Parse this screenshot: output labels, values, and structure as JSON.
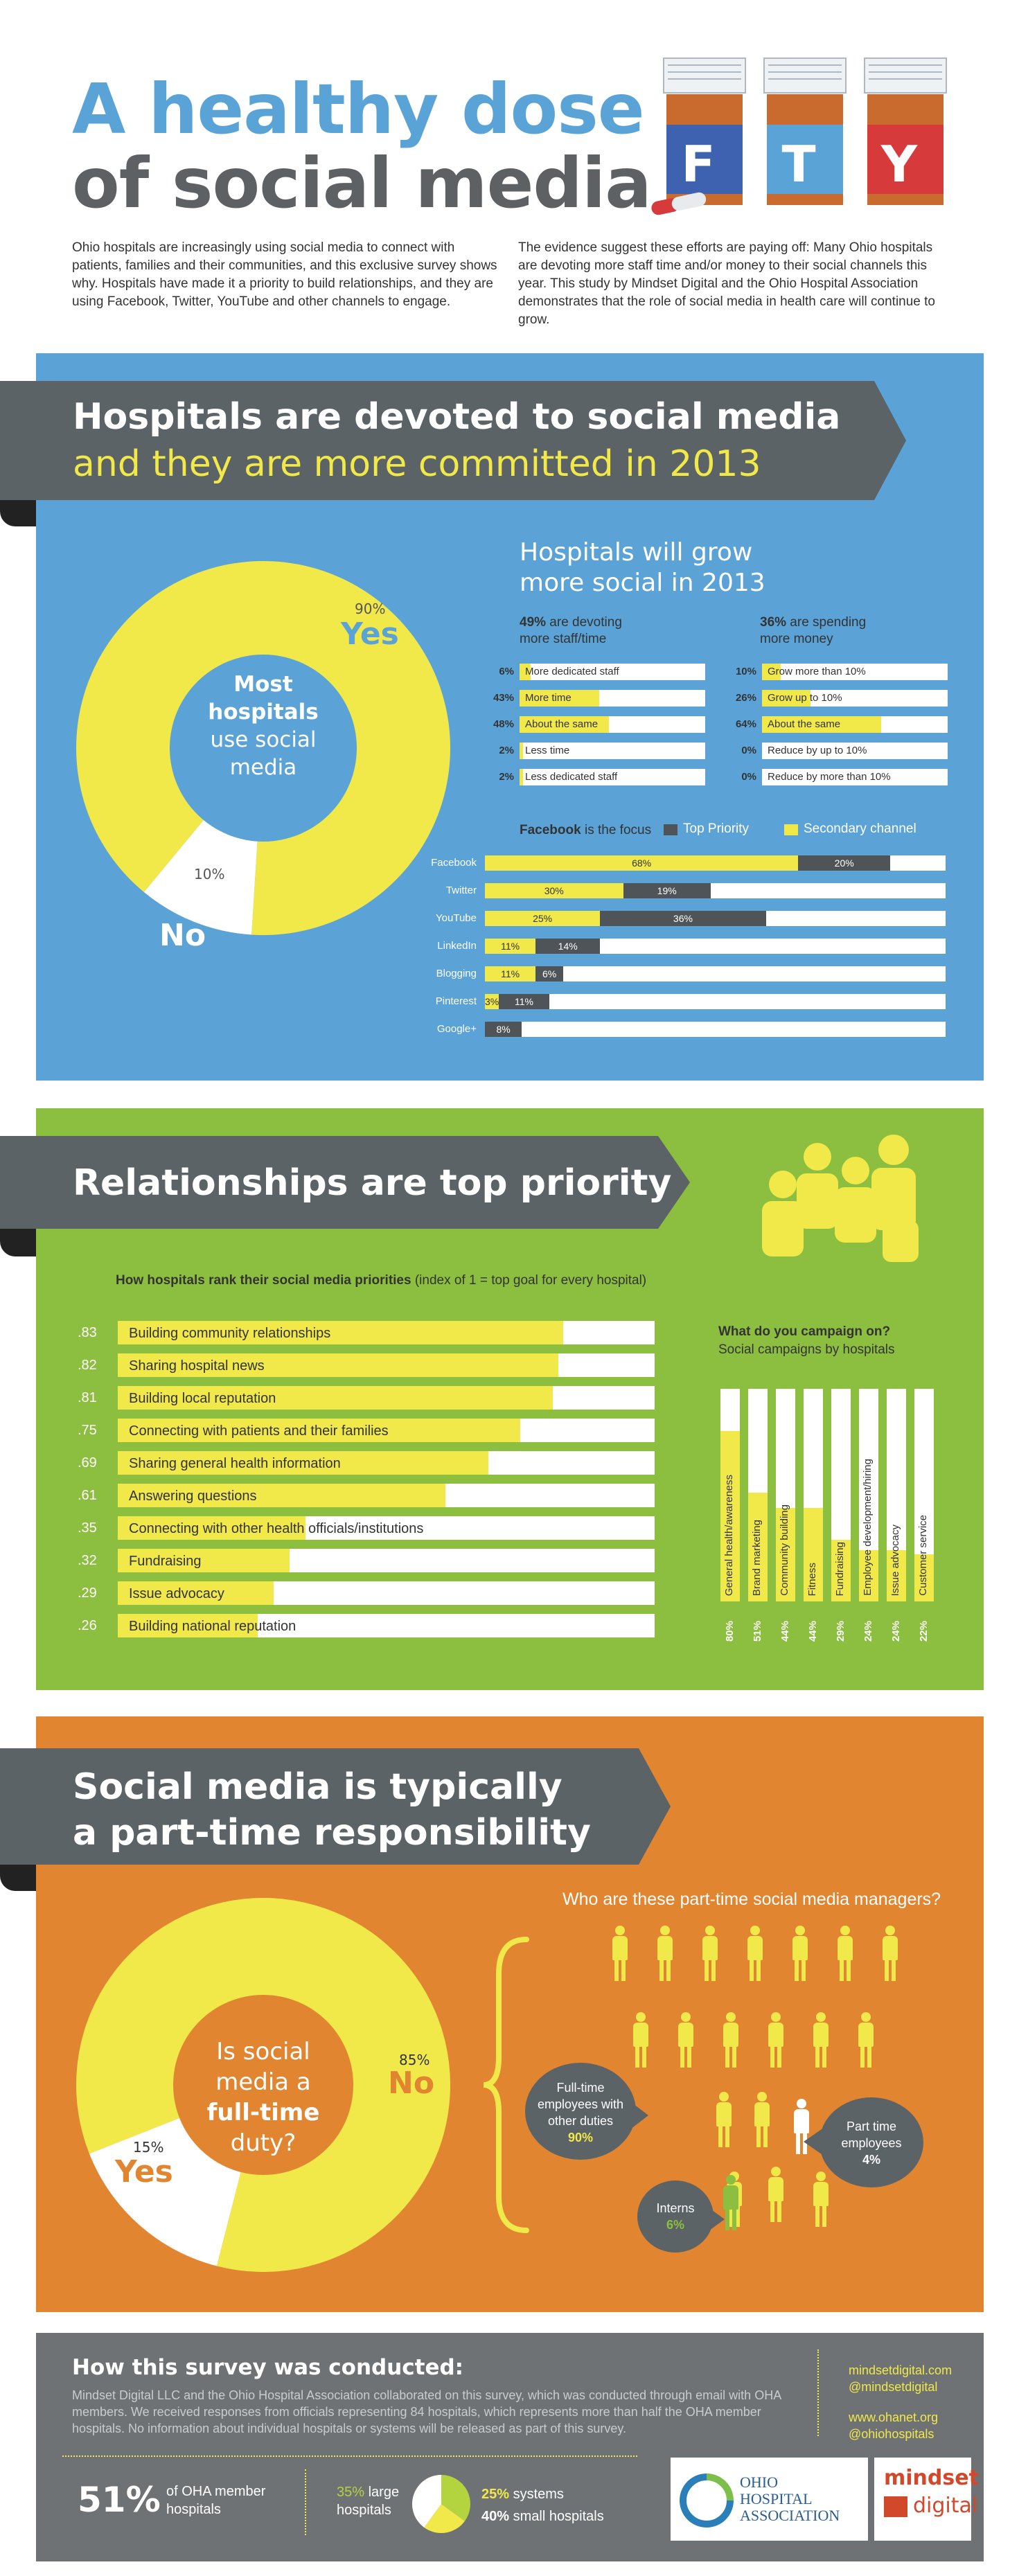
{
  "header": {
    "title_line1": "A healthy dose",
    "title_line2": "of social media",
    "bottles": [
      "F",
      "T",
      "Y"
    ],
    "intro_left": "Ohio hospitals are increasingly using social media to connect with patients, families and their communities, and this exclusive survey shows why. Hospitals have made it a priority to build relationships, and they are using Facebook, Twitter, YouTube and other channels to engage.",
    "intro_right": "The evidence suggest these efforts are paying off: Many Ohio hospitals are devoting more staff time and/or money to their social channels this year. This study by Mindset Digital and the Ohio Hospital Association demonstrates that the role of social media in health care will continue to grow."
  },
  "section1": {
    "banner_line1": "Hospitals are devoted to social media",
    "banner_line2": "and they are more committed in 2013",
    "donut_center": [
      "Most",
      "hospitals",
      "use social",
      "media"
    ],
    "yes_pct": "90%",
    "yes_label": "Yes",
    "no_pct": "10%",
    "no_label": "No",
    "grow_title_line1": "Hospitals will grow",
    "grow_title_line2": "more social in 2013",
    "staff_head_pct": "49%",
    "staff_head_rest": " are devoting",
    "staff_head_line2": "more staff/time",
    "money_head_pct": "36%",
    "money_head_rest": " are spending",
    "money_head_line2": "more money",
    "staff_rows": [
      {
        "pct": "6%",
        "label": "More dedicated staff",
        "value": 0.06
      },
      {
        "pct": "43%",
        "label": "More time",
        "value": 0.43
      },
      {
        "pct": "48%",
        "label": "About the same",
        "value": 0.48
      },
      {
        "pct": "2%",
        "label": "Less time",
        "value": 0.02
      },
      {
        "pct": "2%",
        "label": "Less dedicated staff",
        "value": 0.02
      }
    ],
    "money_rows": [
      {
        "pct": "10%",
        "label": "Grow more than 10%",
        "value": 0.1
      },
      {
        "pct": "26%",
        "label": "Grow up to 10%",
        "value": 0.26
      },
      {
        "pct": "64%",
        "label": "About the same",
        "value": 0.64
      },
      {
        "pct": "0%",
        "label": "Reduce by up to 10%",
        "value": 0.0
      },
      {
        "pct": "0%",
        "label": "Reduce by more than 10%",
        "value": 0.0
      }
    ],
    "fb_title_bold": "Facebook",
    "fb_title_rest": " is the focus",
    "legend_top": "Top Priority",
    "legend_secondary": "Secondary channel",
    "colors": {
      "secondary": "#f1e84a",
      "top": "#4e5457"
    }
  },
  "chart_data": [
    {
      "type": "pie",
      "labels": [
        "Yes",
        "No"
      ],
      "values": [
        90,
        10
      ]
    },
    {
      "type": "bar",
      "categories": [
        "Facebook",
        "Twitter",
        "YouTube",
        "LinkedIn",
        "Blogging",
        "Pinterest",
        "Google+"
      ],
      "series": [
        {
          "name": "Secondary channel",
          "values": [
            68,
            30,
            25,
            11,
            11,
            3,
            0
          ]
        },
        {
          "name": "Top Priority",
          "values": [
            20,
            19,
            36,
            14,
            6,
            11,
            8
          ]
        }
      ]
    },
    {
      "type": "bar",
      "categories": [
        "Building community relationships",
        "Sharing hospital news",
        "Building local reputation",
        "Connecting with patients and their families",
        "Sharing general health information",
        "Answering questions",
        "Connecting with other health officials/institutions",
        "Fundraising",
        "Issue advocacy",
        "Building national reputation"
      ],
      "values": [
        0.83,
        0.82,
        0.81,
        0.75,
        0.69,
        0.61,
        0.35,
        0.32,
        0.29,
        0.26
      ]
    },
    {
      "type": "bar",
      "categories": [
        "General health/awareness",
        "Brand marketing",
        "Community building",
        "Fitness",
        "Fundraising",
        "Employee development/hiring",
        "Issue advocacy",
        "Customer service"
      ],
      "values": [
        80,
        51,
        44,
        44,
        29,
        24,
        24,
        22
      ]
    },
    {
      "type": "pie",
      "labels": [
        "No",
        "Yes"
      ],
      "values": [
        85,
        15
      ]
    }
  ],
  "fb_rows": [
    {
      "label": "Facebook",
      "secondary": "68%",
      "top": "20%"
    },
    {
      "label": "Twitter",
      "secondary": "30%",
      "top": "19%"
    },
    {
      "label": "YouTube",
      "secondary": "25%",
      "top": "36%"
    },
    {
      "label": "LinkedIn",
      "secondary": "11%",
      "top": "14%"
    },
    {
      "label": "Blogging",
      "secondary": "11%",
      "top": "6%"
    },
    {
      "label": "Pinterest",
      "secondary": "3%",
      "top": "11%"
    },
    {
      "label": "Google+",
      "secondary": "",
      "top": "8%"
    }
  ],
  "section2": {
    "banner": "Relationships are top priority",
    "rank_title_bold": "How hospitals rank their social media priorities",
    "rank_title_rest": " (index of 1 = top goal for every hospital)",
    "rank_nums": [
      ".83",
      ".82",
      ".81",
      ".75",
      ".69",
      ".61",
      ".35",
      ".32",
      ".29",
      ".26"
    ],
    "campaign_title": "What do you campaign on?",
    "campaign_sub": "Social campaigns by hospitals",
    "campaign_pcts": [
      "80%",
      "51%",
      "44%",
      "44%",
      "29%",
      "24%",
      "24%",
      "22%"
    ]
  },
  "section3": {
    "banner_line1": "Social media is typically",
    "banner_line2": "a part-time responsibility",
    "donut_center": [
      "Is social",
      "media a"
    ],
    "donut_center_bold": "full-time",
    "donut_center_last": "duty?",
    "no_pct": "85%",
    "no_label": "No",
    "yes_pct": "15%",
    "yes_label": "Yes",
    "managers_title": "Who are these part-time social media managers?",
    "fulltime_lines": [
      "Full-time",
      "employees with",
      "other duties"
    ],
    "fulltime_pct": "90%",
    "parttime_lines": [
      "Part time",
      "employees"
    ],
    "parttime_pct": "4%",
    "interns_label": "Interns",
    "interns_pct": "6%"
  },
  "footer": {
    "title": "How this survey was conducted:",
    "text": "Mindset Digital LLC and the Ohio Hospital Association collaborated on this survey, which was conducted through email with OHA members. We received responses from officials representing 84 hospitals, which represents more than half the OHA member hospitals. No information about individual hospitals or systems will be released as part of this survey.",
    "link1": "mindsetdigital.com",
    "link2": "@mindsetdigital",
    "link3": "www.ohanet.org",
    "link4": "@ohiohospitals",
    "stat_big": "51%",
    "stat_big_text_line1": "of OHA member",
    "stat_big_text_line2": "hospitals",
    "large_pct": "35%",
    "large_text": " large",
    "large_text2": "hospitals",
    "systems_pct": "25%",
    "systems_text": " systems",
    "small_pct": "40%",
    "small_text": " small hospitals",
    "oha_logo": [
      "OHIO",
      "HOSPITAL",
      "ASSOCIATION"
    ],
    "mindset_logo": [
      "mindset",
      "digital"
    ]
  }
}
